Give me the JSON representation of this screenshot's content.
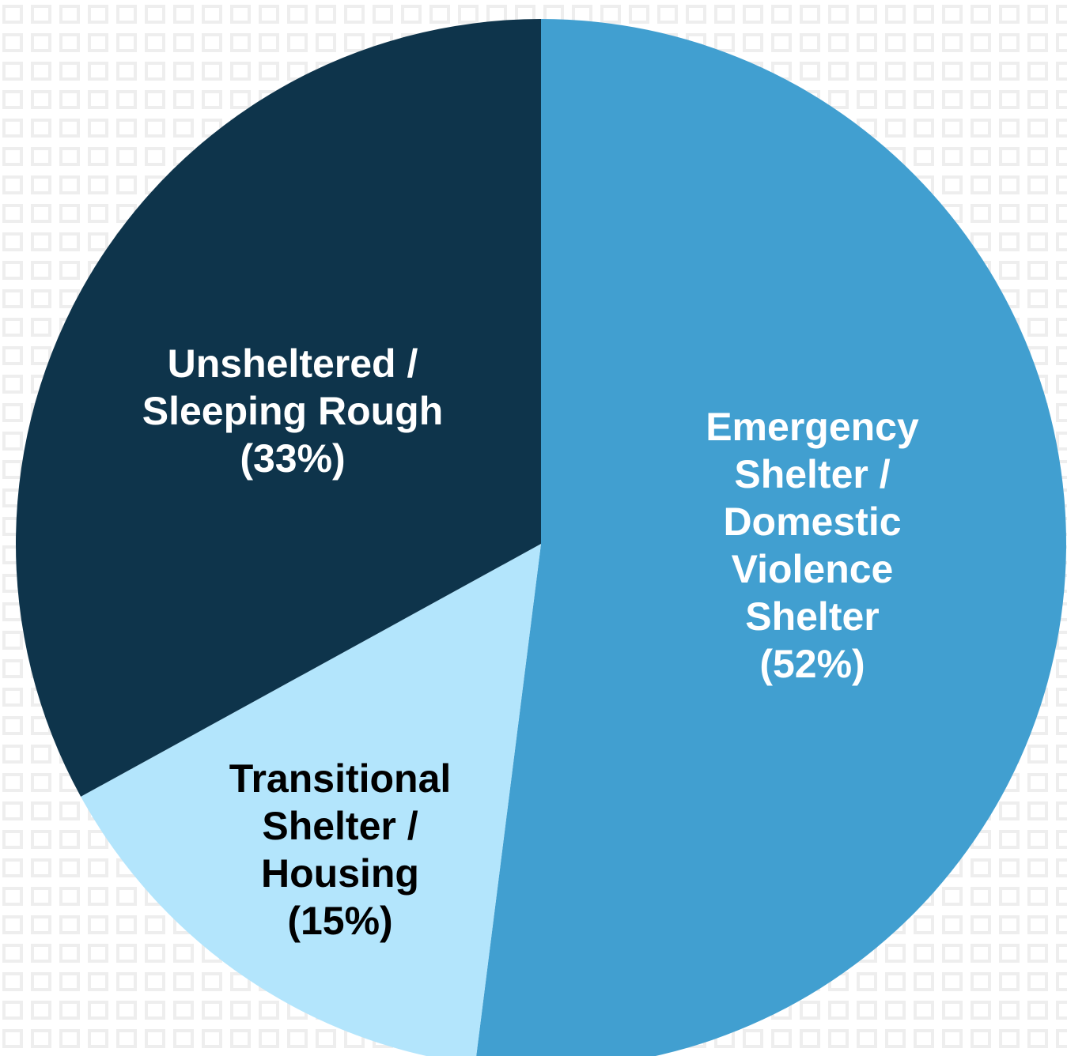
{
  "chart_data": {
    "type": "pie",
    "categories": [
      "Emergency Shelter / Domestic Violence Shelter",
      "Transitional Shelter / Housing",
      "Unsheltered / Sleeping Rough"
    ],
    "values": [
      52,
      15,
      33
    ],
    "value_labels": [
      "(52%)",
      "(15%)",
      "(33%)"
    ],
    "colors": [
      "#419fd0",
      "#b3e5fc",
      "#0e344b"
    ],
    "label_colors": [
      "#ffffff",
      "#000000",
      "#ffffff"
    ]
  }
}
